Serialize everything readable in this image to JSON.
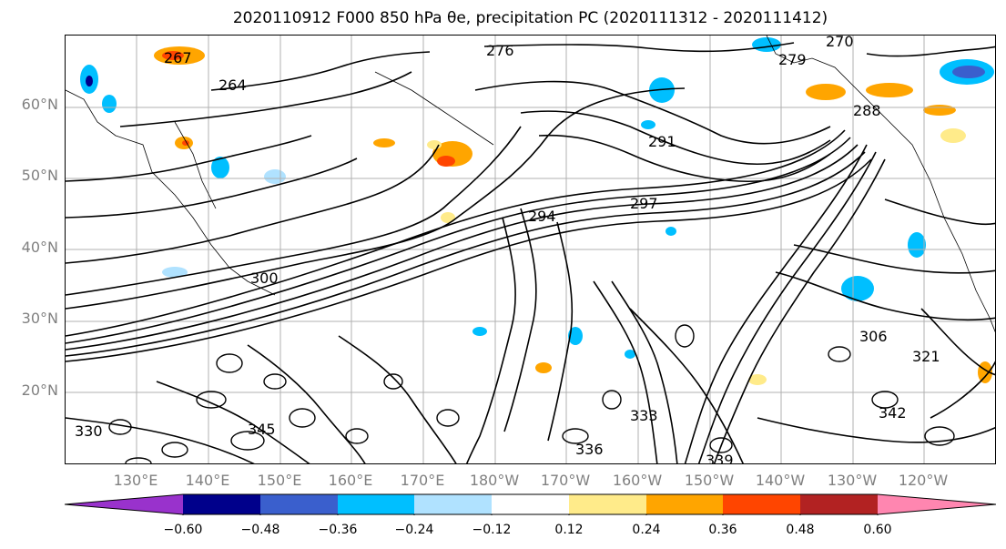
{
  "title": "2020110912 F000 850 hPa θe, precipitation PC (2020111312 - 2020111412)",
  "map": {
    "lat_labels": [
      "60°N",
      "50°N",
      "40°N",
      "30°N",
      "20°N"
    ],
    "lon_labels": [
      "130°E",
      "140°E",
      "150°E",
      "160°E",
      "170°E",
      "180°W",
      "170°W",
      "160°W",
      "150°W",
      "140°W",
      "130°W",
      "120°W"
    ],
    "contour_labels": [
      "267",
      "276",
      "279",
      "270",
      "264",
      "291",
      "294",
      "297",
      "300",
      "288",
      "306",
      "342",
      "339",
      "345",
      "336",
      "333",
      "330",
      "321"
    ],
    "contour_color": "#000000"
  },
  "colorbar": {
    "tick_labels": [
      "−0.60",
      "−0.48",
      "−0.36",
      "−0.24",
      "−0.12",
      "0.12",
      "0.24",
      "0.36",
      "0.48",
      "0.60"
    ],
    "colors": [
      "#9932cc",
      "#00008b",
      "#3a5fcd",
      "#00bfff",
      "#b0e2ff",
      "#ffffff",
      "#ffeb8a",
      "#ffa500",
      "#ff4500",
      "#b22222",
      "#ff86b0"
    ]
  }
}
